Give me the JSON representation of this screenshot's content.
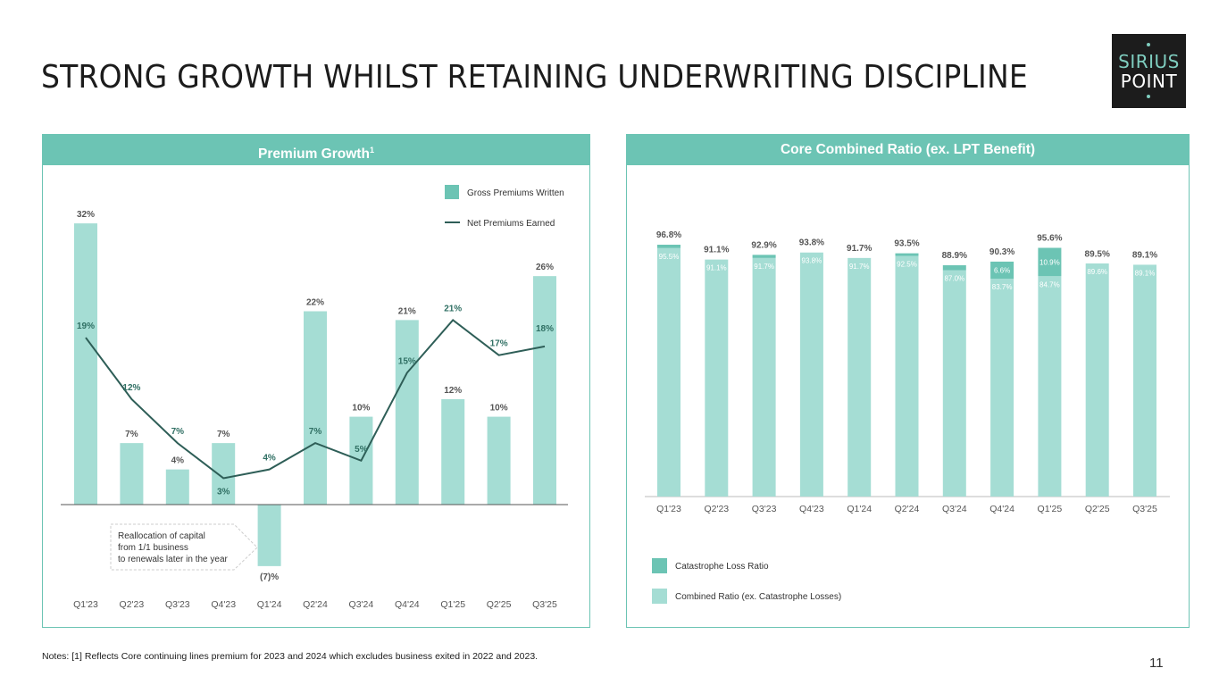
{
  "title": "STRONG GROWTH WHILST RETAINING UNDERWRITING DISCIPLINE",
  "logo": {
    "line1": "SIRIUS",
    "line2": "POINT"
  },
  "panel_left": {
    "title": "Premium Growth",
    "footnote_mark": "1"
  },
  "panel_right": {
    "title": "Core Combined Ratio (ex. LPT Benefit)"
  },
  "notes": "Notes: [1] Reflects Core continuing lines premium for 2023 and 2024 which excludes business exited in 2022 and 2023.",
  "page_number": "11",
  "colors": {
    "teal": "#6cc4b4",
    "light_teal": "#a5ddd4",
    "line": "#2e5e57",
    "label_teal": "#2f6f63"
  },
  "chart_data": [
    {
      "type": "bar",
      "categories": [
        "Q1'23",
        "Q2'23",
        "Q3'23",
        "Q4'23",
        "Q1'24",
        "Q2'24",
        "Q3'24",
        "Q4'24",
        "Q1'25",
        "Q2'25",
        "Q3'25"
      ],
      "series": [
        {
          "name": "Gross Premiums Written",
          "type": "bar",
          "values": [
            32,
            7,
            4,
            7,
            -7,
            22,
            10,
            21,
            12,
            10,
            26
          ],
          "labels": [
            "32%",
            "7%",
            "4%",
            "7%",
            "(7)%",
            "22%",
            "10%",
            "21%",
            "12%",
            "10%",
            "26%"
          ]
        },
        {
          "name": "Net Premiums Earned",
          "type": "line",
          "values": [
            19,
            12,
            7,
            3,
            4,
            7,
            5,
            15,
            21,
            17,
            18
          ],
          "labels": [
            "19%",
            "12%",
            "7%",
            "3%",
            "4%",
            "7%",
            "5%",
            "15%",
            "21%",
            "17%",
            "18%"
          ]
        }
      ],
      "annotation": "Reallocation of capital from 1/1 business to renewals later in the year",
      "legend_position": "top-right"
    },
    {
      "type": "bar",
      "stacked": true,
      "categories": [
        "Q1'23",
        "Q2'23",
        "Q3'23",
        "Q4'23",
        "Q1'24",
        "Q2'24",
        "Q3'24",
        "Q4'24",
        "Q1'25",
        "Q2'25",
        "Q3'25"
      ],
      "series": [
        {
          "name": "Combined Ratio (ex. Catastrophe Losses)",
          "values": [
            95.5,
            91.1,
            91.7,
            93.8,
            91.7,
            92.5,
            87.0,
            83.7,
            84.7,
            89.6,
            89.1
          ],
          "labels": [
            "95.5%",
            "91.1%",
            "91.7%",
            "93.8%",
            "91.7%",
            "92.5%",
            "87.0%",
            "83.7%",
            "84.7%",
            "89.6%",
            "89.1%"
          ]
        },
        {
          "name": "Catastrophe Loss Ratio",
          "values": [
            1.3,
            0,
            1.2,
            0,
            0,
            1.0,
            1.9,
            6.6,
            10.9,
            0,
            0
          ],
          "labels": [
            "",
            "",
            "",
            "",
            "",
            "",
            "",
            "6.6%",
            "10.9%",
            "",
            ""
          ]
        }
      ],
      "totals": [
        "96.8%",
        "91.1%",
        "92.9%",
        "93.8%",
        "91.7%",
        "93.5%",
        "88.9%",
        "90.3%",
        "95.6%",
        "89.5%",
        "89.1%"
      ],
      "total_values": [
        96.8,
        91.1,
        92.9,
        93.8,
        91.7,
        93.5,
        88.9,
        90.3,
        95.6,
        89.5,
        89.1
      ],
      "legend_position": "bottom-left"
    }
  ]
}
